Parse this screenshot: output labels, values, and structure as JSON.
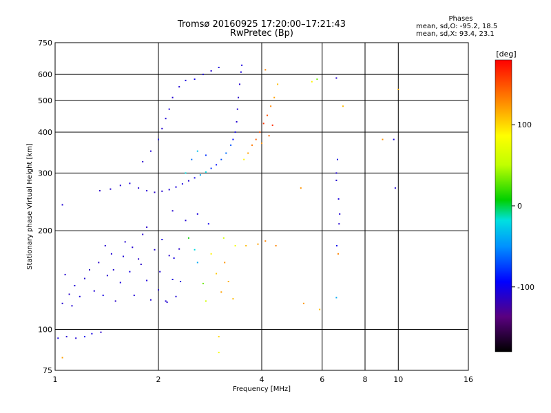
{
  "header": {
    "title_line1": "Tromsø 20160925 17:20:00–17:21:43",
    "title_line2": "RwPretec (Bp)",
    "stats_heading": "Phases",
    "stats_o": "mean, sd,O:  -95.2,  18.5",
    "stats_x": "mean, sd,X:   93.4,  23.1"
  },
  "colorbar": {
    "unit_label": "[deg]",
    "ticks": [
      {
        "label": "100",
        "value": 100
      },
      {
        "label": "0",
        "value": 0
      },
      {
        "label": "-100",
        "value": -100
      }
    ],
    "range": [
      -180,
      180
    ]
  },
  "chart_data": {
    "type": "scatter",
    "xlabel": "Frequency [MHz]",
    "ylabel": "Stationary phase Virtual Height [km]",
    "x_scale": "log",
    "y_scale": "log",
    "xlim": [
      1,
      16
    ],
    "ylim": [
      75,
      750
    ],
    "x_ticks": [
      1,
      2,
      4,
      6,
      8,
      10,
      16
    ],
    "y_ticks": [
      75,
      100,
      200,
      300,
      400,
      500,
      600,
      750
    ],
    "grid": true,
    "color_by": "phase_deg",
    "points": [
      [
        1.02,
        94,
        -105
      ],
      [
        1.08,
        95,
        -110
      ],
      [
        1.15,
        94,
        -108
      ],
      [
        1.22,
        95,
        -100
      ],
      [
        1.28,
        97,
        -104
      ],
      [
        1.36,
        98,
        -112
      ],
      [
        1.05,
        120,
        -110
      ],
      [
        1.1,
        128,
        -112
      ],
      [
        1.14,
        136,
        -108
      ],
      [
        1.18,
        126,
        -106
      ],
      [
        1.22,
        143,
        -110
      ],
      [
        1.26,
        152,
        -115
      ],
      [
        1.3,
        131,
        -108
      ],
      [
        1.34,
        160,
        -112
      ],
      [
        1.38,
        127,
        -104
      ],
      [
        1.42,
        146,
        -110
      ],
      [
        1.46,
        170,
        -108
      ],
      [
        1.5,
        122,
        -112
      ],
      [
        1.55,
        139,
        -106
      ],
      [
        1.6,
        185,
        -110
      ],
      [
        1.65,
        150,
        -104
      ],
      [
        1.7,
        127,
        -108
      ],
      [
        1.75,
        164,
        -112
      ],
      [
        1.8,
        195,
        -110
      ],
      [
        1.85,
        141,
        -106
      ],
      [
        1.9,
        123,
        -108
      ],
      [
        1.95,
        175,
        -110
      ],
      [
        2.0,
        132,
        -112
      ],
      [
        2.05,
        188,
        -104
      ],
      [
        2.1,
        122,
        -108
      ],
      [
        2.15,
        168,
        -110
      ],
      [
        2.2,
        142,
        -106
      ],
      [
        2.25,
        126,
        -108
      ],
      [
        2.3,
        176,
        -112
      ],
      [
        1.07,
        147,
        -110
      ],
      [
        1.12,
        118,
        -108
      ],
      [
        1.48,
        152,
        -110
      ],
      [
        1.58,
        167,
        -108
      ],
      [
        1.68,
        178,
        -110
      ],
      [
        1.78,
        158,
        -112
      ],
      [
        2.02,
        150,
        -108
      ],
      [
        2.12,
        121,
        -110
      ],
      [
        2.22,
        165,
        -104
      ],
      [
        2.32,
        140,
        -106
      ],
      [
        2.45,
        190,
        10
      ],
      [
        2.55,
        175,
        -20
      ],
      [
        2.6,
        160,
        -40
      ],
      [
        2.7,
        138,
        30
      ],
      [
        2.75,
        122,
        60
      ],
      [
        2.85,
        170,
        90
      ],
      [
        2.95,
        148,
        105
      ],
      [
        3.05,
        130,
        120
      ],
      [
        3.12,
        160,
        125
      ],
      [
        3.2,
        140,
        115
      ],
      [
        3.3,
        124,
        110
      ],
      [
        3.1,
        190,
        60
      ],
      [
        3.35,
        180,
        80
      ],
      [
        3.6,
        180,
        110
      ],
      [
        3.9,
        182,
        120
      ],
      [
        4.1,
        186,
        130
      ],
      [
        1.35,
        265,
        -112
      ],
      [
        1.45,
        268,
        -110
      ],
      [
        1.55,
        275,
        -108
      ],
      [
        1.65,
        279,
        -106
      ],
      [
        1.75,
        270,
        -110
      ],
      [
        1.85,
        265,
        -108
      ],
      [
        1.95,
        262,
        -112
      ],
      [
        2.05,
        264,
        -110
      ],
      [
        2.15,
        267,
        -108
      ],
      [
        2.25,
        272,
        -106
      ],
      [
        2.35,
        278,
        -104
      ],
      [
        2.45,
        284,
        -110
      ],
      [
        2.55,
        290,
        -100
      ],
      [
        2.65,
        296,
        -40
      ],
      [
        2.75,
        302,
        -20
      ],
      [
        2.85,
        310,
        -80
      ],
      [
        2.95,
        318,
        -90
      ],
      [
        3.05,
        330,
        -70
      ],
      [
        3.15,
        345,
        -60
      ],
      [
        3.25,
        365,
        -70
      ],
      [
        3.3,
        380,
        -90
      ],
      [
        3.35,
        400,
        -100
      ],
      [
        3.38,
        430,
        -110
      ],
      [
        3.4,
        470,
        -108
      ],
      [
        3.42,
        510,
        -112
      ],
      [
        3.45,
        560,
        -110
      ],
      [
        3.48,
        610,
        -106
      ],
      [
        3.5,
        640,
        -104
      ],
      [
        3.55,
        330,
        90
      ],
      [
        3.65,
        345,
        120
      ],
      [
        3.75,
        365,
        135
      ],
      [
        3.85,
        380,
        145
      ],
      [
        3.95,
        400,
        150
      ],
      [
        4.05,
        425,
        160
      ],
      [
        4.15,
        450,
        150
      ],
      [
        4.25,
        480,
        130
      ],
      [
        4.35,
        510,
        120
      ],
      [
        4.45,
        560,
        110
      ],
      [
        4.2,
        390,
        140
      ],
      [
        4.3,
        420,
        165
      ],
      [
        1.8,
        325,
        -110
      ],
      [
        1.9,
        350,
        -108
      ],
      [
        2.0,
        380,
        -104
      ],
      [
        2.05,
        410,
        -110
      ],
      [
        2.1,
        440,
        -108
      ],
      [
        2.15,
        470,
        -106
      ],
      [
        2.2,
        510,
        -110
      ],
      [
        2.3,
        550,
        -108
      ],
      [
        2.4,
        575,
        -104
      ],
      [
        2.55,
        580,
        -100
      ],
      [
        2.7,
        600,
        -108
      ],
      [
        2.85,
        615,
        -110
      ],
      [
        3.0,
        630,
        -106
      ],
      [
        2.4,
        300,
        -20
      ],
      [
        2.5,
        330,
        -60
      ],
      [
        2.6,
        350,
        -30
      ],
      [
        2.75,
        340,
        -80
      ],
      [
        2.2,
        230,
        -110
      ],
      [
        2.4,
        215,
        -108
      ],
      [
        2.6,
        225,
        -106
      ],
      [
        2.8,
        210,
        -100
      ],
      [
        6.6,
        300,
        -108
      ],
      [
        6.65,
        330,
        -104
      ],
      [
        6.6,
        285,
        -110
      ],
      [
        6.7,
        250,
        -106
      ],
      [
        6.75,
        225,
        -108
      ],
      [
        6.72,
        210,
        -110
      ],
      [
        6.62,
        180,
        -100
      ],
      [
        6.6,
        125,
        -40
      ],
      [
        6.68,
        170,
        130
      ],
      [
        6.9,
        480,
        110
      ],
      [
        6.6,
        585,
        -110
      ],
      [
        9.7,
        380,
        -104
      ],
      [
        9.8,
        270,
        -108
      ],
      [
        1.05,
        240,
        -108
      ],
      [
        1.4,
        180,
        -110
      ],
      [
        1.85,
        205,
        -112
      ],
      [
        4.4,
        180,
        130
      ],
      [
        5.2,
        270,
        125
      ],
      [
        5.3,
        120,
        125
      ],
      [
        5.9,
        115,
        110
      ],
      [
        5.6,
        570,
        90
      ],
      [
        5.8,
        580,
        30
      ],
      [
        10.0,
        540,
        115
      ],
      [
        9.0,
        380,
        125
      ],
      [
        3.0,
        95,
        100
      ],
      [
        3.0,
        85,
        80
      ],
      [
        1.05,
        82,
        120
      ],
      [
        4.1,
        620,
        130
      ],
      [
        4.0,
        370,
        125
      ]
    ]
  }
}
